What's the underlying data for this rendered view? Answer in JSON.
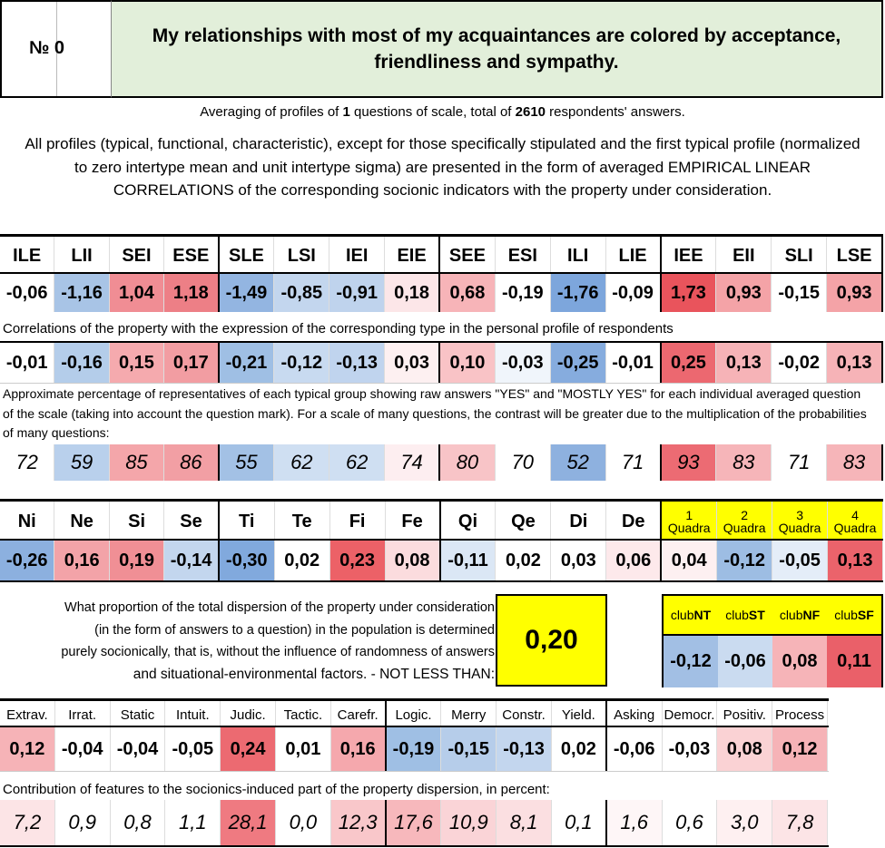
{
  "header": {
    "number_label": "№ 0",
    "title": "My relationships with most of my acquaintances are colored by acceptance, friendliness and sympathy."
  },
  "averaging": {
    "prefix": "Averaging of profiles of ",
    "questions": "1",
    "middle": " questions of scale, total of ",
    "respondents": "2610",
    "suffix": " respondents' answers."
  },
  "intro_text": "All profiles (typical, functional, characteristic), except for those specifically stipulated and the first typical profile (normalized to zero intertype mean and unit intertype sigma) are presented in the form of averaged EMPIRICAL LINEAR CORRELATIONS of the corresponding socionic indicators with the property under consideration.",
  "types": {
    "labels": [
      "ILE",
      "LII",
      "SEI",
      "ESE",
      "SLE",
      "LSI",
      "IEI",
      "EIE",
      "SEE",
      "ESI",
      "ILI",
      "LIE",
      "IEE",
      "EII",
      "SLI",
      "LSE"
    ],
    "profile": [
      "-0,06",
      "-1,16",
      "1,04",
      "1,18",
      "-1,49",
      "-0,85",
      "-0,91",
      "0,18",
      "0,68",
      "-0,19",
      "-1,76",
      "-0,09",
      "1,73",
      "0,93",
      "-0,15",
      "0,93"
    ],
    "profile_colors": [
      "#ffffff",
      "#a8c4e6",
      "#f08d94",
      "#ed7f86",
      "#93b5e1",
      "#c3d6ee",
      "#bfd3ed",
      "#fce6e8",
      "#f7b4b8",
      "#ffffff",
      "#7da6dc",
      "#ffffff",
      "#e9545c",
      "#f4a3a7",
      "#ffffff",
      "#f4a3a7"
    ],
    "corr_note": "Correlations of the property with the expression of the corresponding type in the personal profile of respondents",
    "correlations": [
      "-0,01",
      "-0,16",
      "0,15",
      "0,17",
      "-0,21",
      "-0,12",
      "-0,13",
      "0,03",
      "0,10",
      "-0,03",
      "-0,25",
      "-0,01",
      "0,25",
      "0,13",
      "-0,02",
      "0,13"
    ],
    "corr_colors": [
      "#ffffff",
      "#b4cdea",
      "#f5aaae",
      "#f29da2",
      "#9fbfe4",
      "#c8daf0",
      "#c0d4ee",
      "#fdf0f1",
      "#f9c3c6",
      "#f0f5fb",
      "#86acde",
      "#ffffff",
      "#ec6870",
      "#f6b3b7",
      "#ffffff",
      "#f6b3b7"
    ],
    "pct_note": "Approximate percentage of representatives of each typical group showing raw answers \"YES\" and \"MOSTLY YES\" for each individual averaged question of the scale (taking into account the question mark). For a scale of many questions, the contrast will be greater due to the multiplication of the probabilities of many questions:",
    "percentages": [
      "72",
      "59",
      "85",
      "86",
      "55",
      "62",
      "62",
      "74",
      "80",
      "70",
      "52",
      "71",
      "93",
      "83",
      "71",
      "83"
    ],
    "pct_colors": [
      "#ffffff",
      "#b9d0ec",
      "#f4a6aa",
      "#f29fa4",
      "#a3c1e5",
      "#cfdff2",
      "#cfdff2",
      "#fdeef0",
      "#f8c4c7",
      "#ffffff",
      "#8eb1df",
      "#ffffff",
      "#ec6b73",
      "#f6b5b9",
      "#ffffff",
      "#f6b5b9"
    ]
  },
  "functions": {
    "labels": [
      "Ni",
      "Ne",
      "Si",
      "Se",
      "Ti",
      "Te",
      "Fi",
      "Fe",
      "Qi",
      "Qe",
      "Di",
      "De"
    ],
    "values": [
      "-0,26",
      "0,16",
      "0,19",
      "-0,14",
      "-0,30",
      "0,02",
      "0,23",
      "0,08",
      "-0,11",
      "0,02",
      "0,03",
      "0,06"
    ],
    "colors": [
      "#8cb0df",
      "#f3a3a8",
      "#f08f95",
      "#c3d6ee",
      "#81a9dd",
      "#ffffff",
      "#ec6167",
      "#fbdcde",
      "#dbe7f5",
      "#ffffff",
      "#ffffff",
      "#fde9eb"
    ],
    "quadra_labels": [
      [
        "1",
        "Quadra"
      ],
      [
        "2",
        "Quadra"
      ],
      [
        "3",
        "Quadra"
      ],
      [
        "4",
        "Quadra"
      ]
    ],
    "quadra_values": [
      "0,04",
      "-0,12",
      "-0,05",
      "0,13"
    ],
    "quadra_colors": [
      "#fdf0f1",
      "#9dbde3",
      "#e4edf8",
      "#eb636b"
    ]
  },
  "dispersion": {
    "lines": [
      "What proportion of the total dispersion of the property under consideration",
      "(in the form of answers to a question) in the population is determined",
      "purely socionically, that is, without the influence of randomness of answers",
      "and situational-environmental factors. - NOT LESS THAN:"
    ],
    "value": "0,20"
  },
  "clubs": {
    "labels": [
      [
        "club",
        "NT"
      ],
      [
        "club",
        "ST"
      ],
      [
        "club",
        "NF"
      ],
      [
        "club",
        "SF"
      ]
    ],
    "values": [
      "-0,12",
      "-0,06",
      "0,08",
      "0,11"
    ],
    "colors": [
      "#a2bfe4",
      "#cadbf0",
      "#f6b4b8",
      "#ea6069"
    ]
  },
  "features": {
    "labels": [
      "Extrav.",
      "Irrat.",
      "Static",
      "Intuit.",
      "Judic.",
      "Tactic.",
      "Carefr.",
      "Logic.",
      "Merry",
      "Constr.",
      "Yield.",
      "Asking",
      "Democr.",
      "Positiv.",
      "Process"
    ],
    "values": [
      "0,12",
      "-0,04",
      "-0,04",
      "-0,05",
      "0,24",
      "0,01",
      "0,16",
      "-0,19",
      "-0,15",
      "-0,13",
      "0,02",
      "-0,06",
      "-0,03",
      "0,08",
      "0,12"
    ],
    "colors": [
      "#f6b3b7",
      "#ffffff",
      "#ffffff",
      "#ffffff",
      "#ec6a71",
      "#ffffff",
      "#f5a8ad",
      "#9fbfe4",
      "#b6cdea",
      "#c3d6ee",
      "#ffffff",
      "#ffffff",
      "#ffffff",
      "#fad2d4",
      "#f6b3b7"
    ],
    "contrib_note": "Contribution of features to the socionics-induced part of the property dispersion, in percent:",
    "contributions": [
      "7,2",
      "0,9",
      "0,8",
      "1,1",
      "28,1",
      "0,0",
      "12,3",
      "17,6",
      "10,9",
      "8,1",
      "0,1",
      "1,6",
      "0,6",
      "3,0",
      "7,8"
    ],
    "contrib_colors": [
      "#fce4e6",
      "#ffffff",
      "#ffffff",
      "#ffffff",
      "#ef7a81",
      "#ffffff",
      "#f9c7ca",
      "#f7b8bc",
      "#fad4d7",
      "#fbdfe1",
      "#ffffff",
      "#fef6f7",
      "#ffffff",
      "#fef0f1",
      "#fce4e6"
    ]
  }
}
